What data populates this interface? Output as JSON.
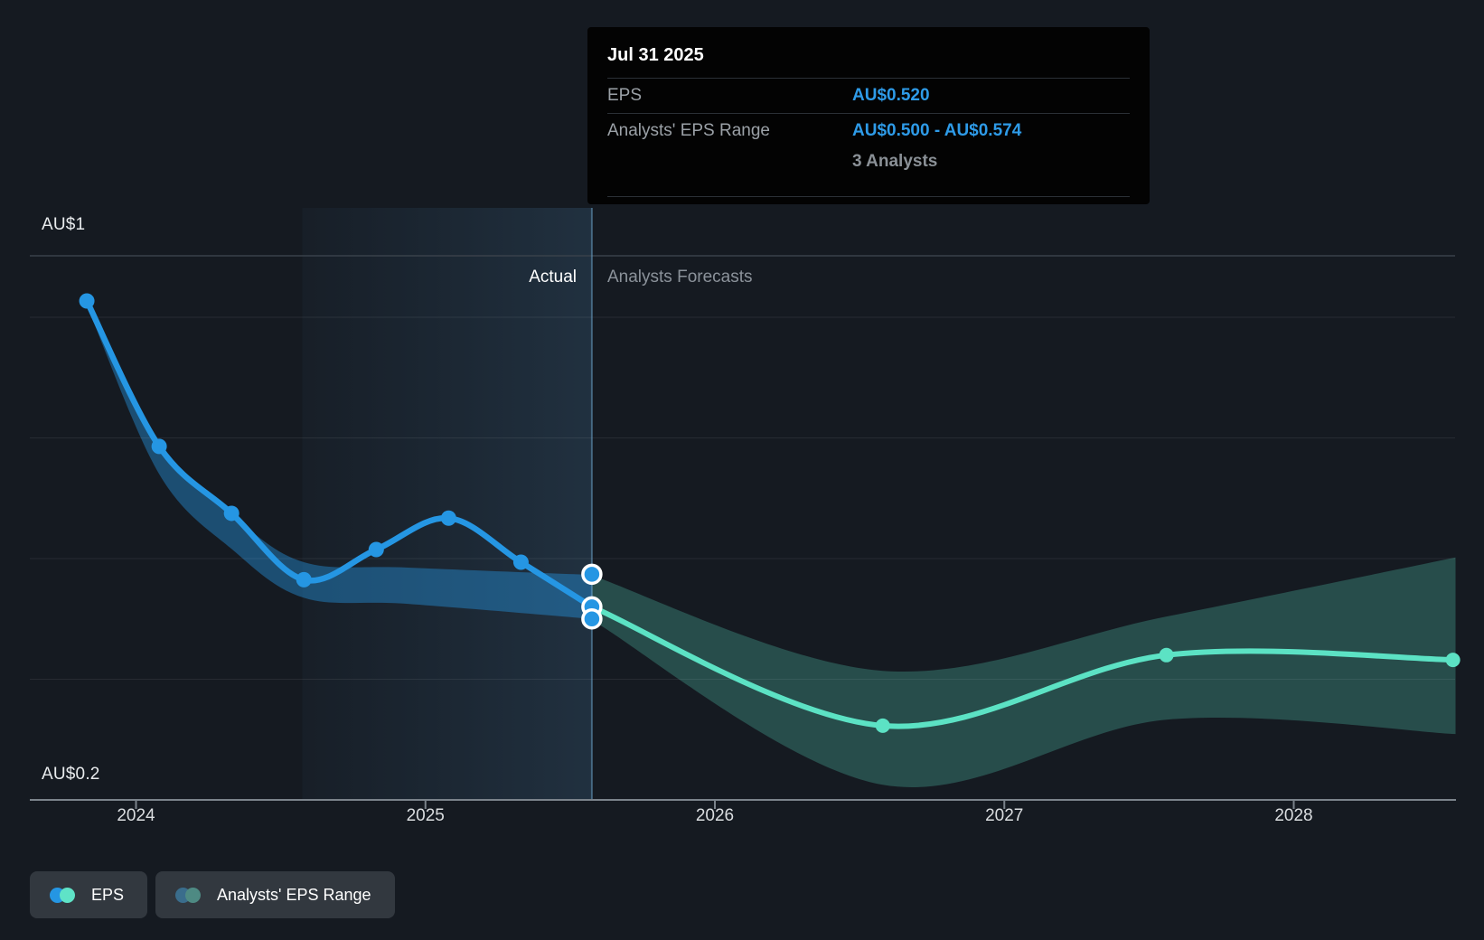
{
  "tooltip": {
    "date": "Jul 31 2025",
    "rows": [
      {
        "label": "EPS",
        "value": "AU$0.520"
      },
      {
        "label": "Analysts' EPS Range",
        "value": "AU$0.500 - AU$0.574"
      }
    ],
    "analysts_note": "3 Analysts"
  },
  "y_axis": {
    "top_label": "AU$1",
    "bottom_label": "AU$0.2"
  },
  "sections": {
    "actual_label": "Actual",
    "forecast_label": "Analysts Forecasts"
  },
  "x_axis": {
    "years": [
      "2024",
      "2025",
      "2026",
      "2027",
      "2028"
    ]
  },
  "legend": {
    "items": [
      {
        "label": "EPS"
      },
      {
        "label": "Analysts' EPS Range"
      }
    ]
  },
  "chart_data": {
    "type": "line",
    "title": "EPS actual and analysts forecast over time",
    "unit": "AU$ per share",
    "x_ticks": [
      2024,
      2025,
      2026,
      2027,
      2028
    ],
    "y_gridlines": [
      1.0,
      0.8,
      0.6,
      0.4
    ],
    "y_axis_bottom": 0.2,
    "ylim": [
      0.2,
      1.09
    ],
    "divider_x": 2025.575,
    "divider_date": "Jul 31 2025",
    "highlight_span": [
      2024.575,
      2025.575
    ],
    "legend_position": "bottom-left",
    "series": [
      {
        "name": "EPS",
        "kind": "actual",
        "x": [
          2023.83,
          2024.08,
          2024.33,
          2024.58,
          2024.83,
          2025.08,
          2025.33,
          2025.575
        ],
        "values": [
          1.027,
          0.786,
          0.675,
          0.565,
          0.615,
          0.667,
          0.594,
          0.52
        ]
      },
      {
        "name": "EPS forecast",
        "kind": "forecast",
        "x": [
          2025.575,
          2026.58,
          2027.56,
          2028.55
        ],
        "values": [
          0.52,
          0.323,
          0.44,
          0.432
        ]
      }
    ],
    "current_markers": {
      "x": 2025.575,
      "values": [
        0.574,
        0.52,
        0.5
      ],
      "eps": 0.52,
      "range": [
        0.5,
        0.574
      ],
      "analysts": 3
    },
    "actual_range_band": {
      "x": [
        2023.83,
        2024.08,
        2024.33,
        2024.58,
        2024.94,
        2025.575
      ],
      "top": [
        1.025,
        0.782,
        0.672,
        0.594,
        0.585,
        0.573
      ],
      "bottom": [
        1.02,
        0.74,
        0.616,
        0.535,
        0.525,
        0.5
      ]
    },
    "forecast_range_band": {
      "x": [
        2025.575,
        2026.58,
        2027.56,
        2028.56
      ],
      "top": [
        0.572,
        0.414,
        0.504,
        0.602
      ],
      "bottom": [
        0.498,
        0.225,
        0.333,
        0.309
      ]
    },
    "colors": {
      "actual": "#2596E3",
      "forecast": "#5CE2C4",
      "actual_band": "rgba(37,150,227,0.42)",
      "forecast_band": "rgba(92,226,196,0.26)",
      "marker_ring": "#FFFFFF",
      "gridline": "rgba(255,255,255,0.08)",
      "header_line": "#39414A",
      "axis_line": "#7B838B",
      "divider": "rgba(110,165,205,0.5)"
    }
  }
}
